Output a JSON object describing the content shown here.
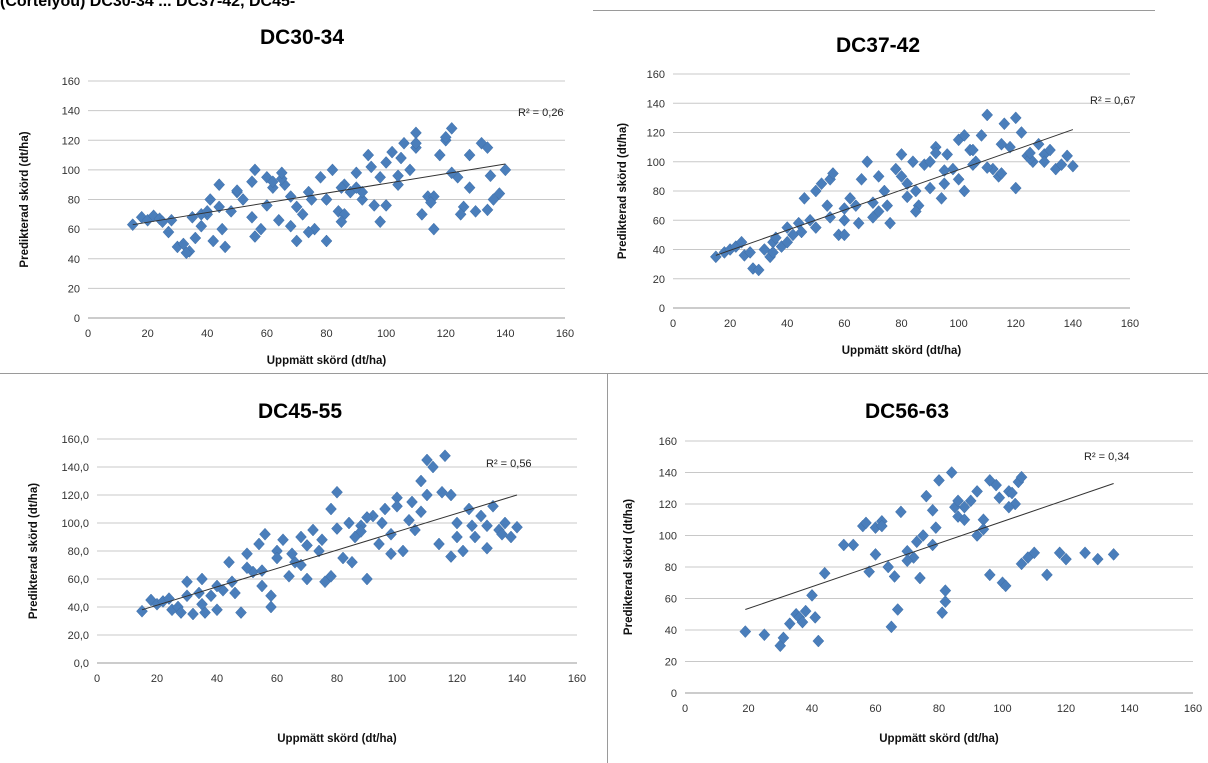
{
  "header_fragment": "(Cortelyou) DC30-34 ... DC37-42, DC45-",
  "colors": {
    "marker": "#4a7ebb",
    "trendline": "#333333",
    "grid": "#c8c8c8"
  },
  "chart_data": [
    {
      "type": "scatter",
      "title": "DC30-34",
      "xlabel": "Uppmätt skörd (dt/ha)",
      "ylabel": "Predikterad skörd (dt/ha)",
      "xlim": [
        0,
        160
      ],
      "ylim": [
        0,
        160
      ],
      "xticks": [
        "0",
        "20",
        "40",
        "60",
        "80",
        "100",
        "120",
        "140",
        "160"
      ],
      "yticks": [
        "0",
        "20",
        "40",
        "60",
        "80",
        "100",
        "120",
        "140",
        "160"
      ],
      "r2_label": "R² = 0,26",
      "trendline": {
        "x": [
          15,
          140
        ],
        "y": [
          63,
          104
        ]
      },
      "grid": true,
      "x": [
        15,
        18,
        20,
        22,
        24,
        25,
        27,
        30,
        32,
        34,
        35,
        36,
        38,
        40,
        41,
        42,
        44,
        46,
        48,
        50,
        52,
        55,
        56,
        58,
        60,
        62,
        64,
        66,
        68,
        70,
        72,
        74,
        76,
        78,
        80,
        82,
        84,
        86,
        88,
        90,
        92,
        94,
        96,
        98,
        100,
        102,
        104,
        106,
        108,
        110,
        112,
        114,
        116,
        118,
        120,
        122,
        124,
        126,
        128,
        130,
        132,
        134,
        136,
        138,
        140,
        28,
        33,
        38,
        44,
        50,
        56,
        62,
        68,
        74,
        80,
        86,
        92,
        98,
        104,
        110,
        116,
        122,
        128,
        134,
        45,
        55,
        65,
        75,
        85,
        95,
        105,
        115,
        125,
        135,
        70,
        90,
        110,
        60,
        80,
        100,
        120,
        40,
        65,
        85
      ],
      "y": [
        63,
        68,
        66,
        69,
        67,
        65,
        58,
        48,
        50,
        45,
        68,
        54,
        62,
        70,
        80,
        52,
        90,
        48,
        72,
        85,
        80,
        92,
        55,
        60,
        95,
        88,
        66,
        90,
        82,
        75,
        70,
        85,
        60,
        95,
        80,
        100,
        72,
        90,
        85,
        98,
        80,
        110,
        76,
        95,
        105,
        112,
        90,
        118,
        100,
        125,
        70,
        82,
        60,
        110,
        120,
        128,
        95,
        75,
        110,
        72,
        118,
        115,
        80,
        84,
        100,
        66,
        44,
        70,
        75,
        86,
        100,
        92,
        62,
        58,
        80,
        70,
        85,
        65,
        96,
        115,
        82,
        98,
        88,
        73,
        60,
        68,
        94,
        80,
        88,
        102,
        108,
        78,
        70,
        96,
        52,
        88,
        118,
        76,
        52,
        76,
        122,
        72,
        98,
        65
      ]
    },
    {
      "type": "scatter",
      "title": "DC37-42",
      "xlabel": "Uppmätt skörd (dt/ha)",
      "ylabel": "Predikterad skörd (dt/ha)",
      "xlim": [
        0,
        160
      ],
      "ylim": [
        0,
        160
      ],
      "xticks": [
        "0",
        "20",
        "40",
        "60",
        "80",
        "100",
        "120",
        "140",
        "160"
      ],
      "yticks": [
        "0",
        "20",
        "40",
        "60",
        "80",
        "100",
        "120",
        "140",
        "160"
      ],
      "r2_label": "R² = 0,67",
      "trendline": {
        "x": [
          15,
          140
        ],
        "y": [
          36,
          122
        ]
      },
      "grid": true,
      "x": [
        15,
        18,
        20,
        22,
        24,
        25,
        27,
        28,
        30,
        32,
        34,
        35,
        36,
        38,
        40,
        42,
        44,
        46,
        48,
        50,
        52,
        54,
        55,
        56,
        58,
        60,
        62,
        64,
        66,
        68,
        70,
        72,
        74,
        76,
        78,
        80,
        82,
        84,
        86,
        88,
        90,
        92,
        94,
        96,
        98,
        100,
        102,
        104,
        106,
        108,
        110,
        112,
        114,
        116,
        118,
        120,
        122,
        124,
        126,
        128,
        130,
        132,
        134,
        136,
        138,
        140,
        40,
        50,
        60,
        70,
        80,
        90,
        100,
        110,
        120,
        130,
        45,
        55,
        65,
        75,
        85,
        95,
        105,
        115,
        125,
        35,
        60,
        85,
        95,
        105,
        115,
        125,
        72,
        82,
        92,
        102
      ],
      "y": [
        35,
        38,
        40,
        42,
        45,
        36,
        38,
        27,
        26,
        40,
        35,
        45,
        48,
        42,
        55,
        50,
        58,
        75,
        60,
        80,
        85,
        70,
        88,
        92,
        50,
        60,
        75,
        70,
        88,
        100,
        62,
        90,
        80,
        58,
        95,
        105,
        85,
        100,
        70,
        98,
        82,
        110,
        75,
        105,
        95,
        115,
        80,
        108,
        100,
        118,
        132,
        95,
        90,
        126,
        110,
        130,
        120,
        104,
        100,
        112,
        105,
        108,
        95,
        98,
        104,
        97,
        45,
        55,
        68,
        72,
        90,
        100,
        88,
        96,
        82,
        100,
        52,
        62,
        58,
        70,
        80,
        94,
        108,
        112,
        102,
        38,
        50,
        66,
        85,
        98,
        92,
        106,
        66,
        76,
        106,
        118
      ]
    },
    {
      "type": "scatter",
      "title": "DC45-55",
      "xlabel": "Uppmätt skörd (dt/ha)",
      "ylabel": "Predikterad skörd (dt/ha)",
      "xlim": [
        0,
        160
      ],
      "ylim": [
        0,
        160
      ],
      "xticks": [
        "0",
        "20",
        "40",
        "60",
        "80",
        "100",
        "120",
        "140",
        "160"
      ],
      "yticks": [
        "0,0",
        "20,0",
        "40,0",
        "60,0",
        "80,0",
        "100,0",
        "120,0",
        "140,0",
        "160,0"
      ],
      "r2_label": "R² = 0,56",
      "trendline": {
        "x": [
          15,
          140
        ],
        "y": [
          38,
          120
        ]
      },
      "grid": true,
      "x": [
        15,
        18,
        20,
        22,
        24,
        25,
        27,
        28,
        30,
        32,
        34,
        35,
        36,
        38,
        40,
        42,
        44,
        46,
        48,
        50,
        52,
        54,
        55,
        56,
        58,
        60,
        62,
        64,
        66,
        68,
        70,
        72,
        74,
        76,
        78,
        80,
        82,
        84,
        86,
        88,
        90,
        92,
        94,
        96,
        98,
        100,
        102,
        104,
        106,
        108,
        110,
        112,
        114,
        116,
        118,
        120,
        122,
        124,
        126,
        128,
        130,
        132,
        134,
        136,
        138,
        140,
        30,
        40,
        50,
        60,
        70,
        80,
        90,
        100,
        110,
        120,
        130,
        35,
        45,
        55,
        65,
        75,
        85,
        95,
        105,
        115,
        125,
        135,
        58,
        68,
        78,
        88,
        98,
        108,
        118
      ],
      "y": [
        37,
        45,
        42,
        44,
        46,
        38,
        40,
        36,
        58,
        35,
        50,
        60,
        36,
        48,
        38,
        52,
        72,
        50,
        36,
        78,
        65,
        85,
        55,
        92,
        40,
        80,
        88,
        62,
        72,
        90,
        60,
        95,
        80,
        58,
        110,
        122,
        75,
        100,
        90,
        98,
        60,
        105,
        85,
        110,
        92,
        118,
        80,
        102,
        95,
        130,
        145,
        140,
        85,
        148,
        120,
        100,
        80,
        110,
        90,
        105,
        98,
        112,
        95,
        100,
        90,
        97,
        48,
        55,
        68,
        75,
        84,
        96,
        104,
        112,
        120,
        90,
        82,
        42,
        58,
        66,
        78,
        88,
        72,
        100,
        115,
        122,
        98,
        92,
        48,
        70,
        62,
        94,
        78,
        108,
        76
      ]
    },
    {
      "type": "scatter",
      "title": "DC56-63",
      "xlabel": "Uppmätt skörd (dt/ha)",
      "ylabel": "Predikterad skörd (dt/ha)",
      "xlim": [
        0,
        160
      ],
      "ylim": [
        0,
        160
      ],
      "xticks": [
        "0",
        "20",
        "40",
        "60",
        "80",
        "100",
        "120",
        "140",
        "160"
      ],
      "yticks": [
        "0",
        "20",
        "40",
        "60",
        "80",
        "100",
        "120",
        "140",
        "160"
      ],
      "r2_label": "R² = 0,34",
      "trendline": {
        "x": [
          19,
          135
        ],
        "y": [
          53,
          133
        ]
      },
      "grid": true,
      "x": [
        19,
        25,
        30,
        31,
        33,
        35,
        36,
        37,
        38,
        40,
        41,
        42,
        44,
        50,
        53,
        56,
        58,
        60,
        62,
        64,
        66,
        68,
        70,
        72,
        74,
        76,
        78,
        80,
        82,
        84,
        86,
        88,
        90,
        92,
        94,
        96,
        98,
        100,
        101,
        102,
        104,
        105,
        106,
        108,
        110,
        114,
        118,
        120,
        126,
        130,
        135,
        57,
        65,
        67,
        75,
        79,
        81,
        82,
        85,
        88,
        92,
        96,
        99,
        103,
        106,
        60,
        70,
        78,
        86,
        94,
        102,
        62,
        73
      ],
      "y": [
        39,
        37,
        30,
        35,
        44,
        50,
        48,
        45,
        52,
        62,
        48,
        33,
        76,
        94,
        94,
        106,
        77,
        105,
        109,
        80,
        74,
        115,
        90,
        86,
        73,
        125,
        94,
        135,
        65,
        140,
        112,
        118,
        122,
        100,
        110,
        135,
        132,
        70,
        68,
        128,
        120,
        134,
        82,
        86,
        89,
        75,
        89,
        85,
        89,
        85,
        88,
        108,
        42,
        53,
        100,
        105,
        51,
        58,
        118,
        110,
        128,
        75,
        124,
        127,
        137,
        88,
        84,
        116,
        122,
        104,
        118,
        106,
        96
      ]
    }
  ]
}
